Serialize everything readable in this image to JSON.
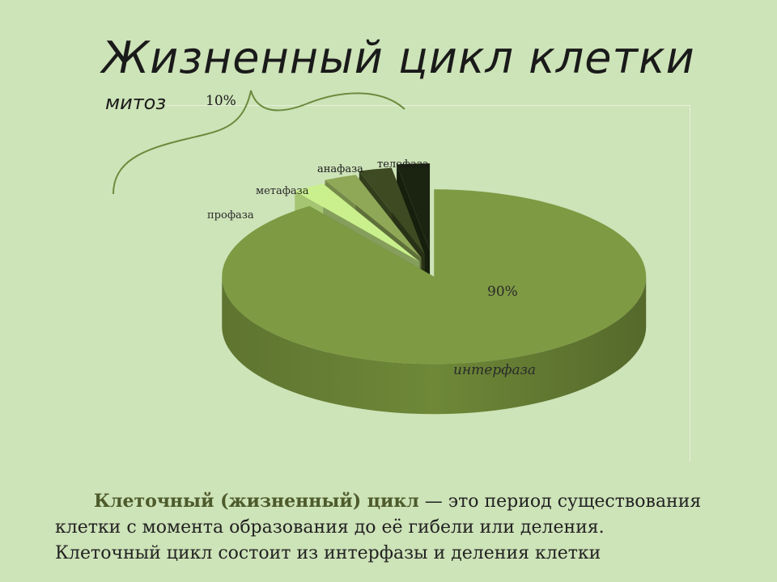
{
  "slide": {
    "title": "Жизненный цикл клетки",
    "text": {
      "term": "Клеточный (жизненный) цикл",
      "line1_rest": " — это период существования",
      "line2": "клетки с момента образования до её гибели или деления.",
      "line3": "Клеточный цикл состоит из интерфазы и деления клетки"
    }
  },
  "chart_data": {
    "type": "pie",
    "style": "3d-exploded",
    "slices": [
      {
        "name": "интерфаза",
        "value": 90,
        "label": "90%",
        "color": "#7e9a43"
      },
      {
        "name": "профаза",
        "value": 2.5,
        "color": "#c9f08c"
      },
      {
        "name": "метафаза",
        "value": 2.5,
        "color": "#8fa858"
      },
      {
        "name": "анафаза",
        "value": 2.5,
        "color": "#3d4a22"
      },
      {
        "name": "телофаза",
        "value": 2.5,
        "color": "#1b2410"
      }
    ],
    "group": {
      "name": "митоз",
      "value": 10,
      "label": "10%"
    }
  }
}
